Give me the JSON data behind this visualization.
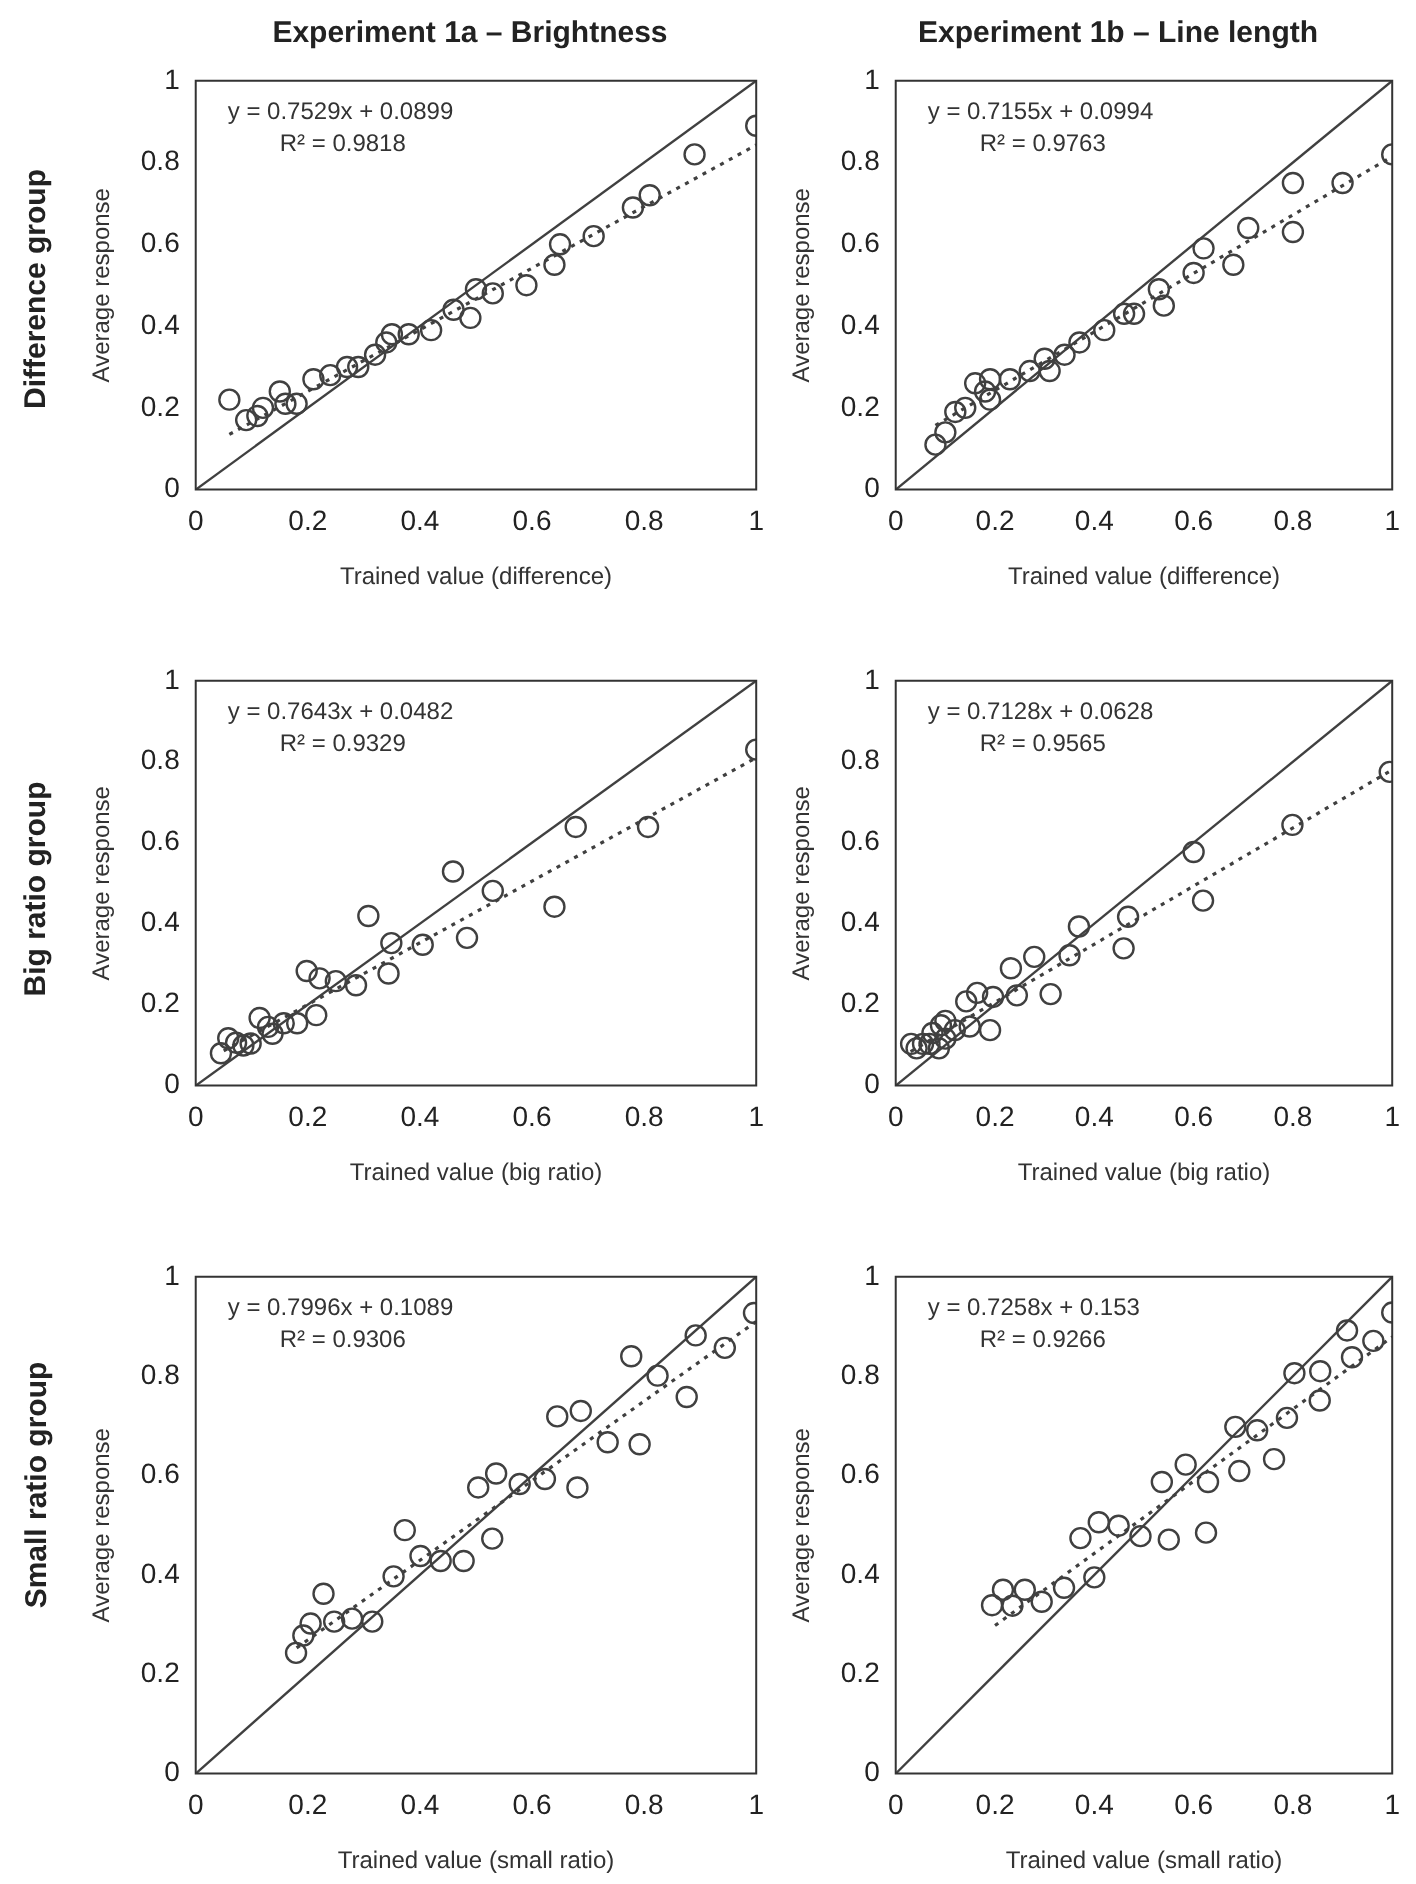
{
  "chart_data": [
    {
      "type": "scatter",
      "title": "Experiment 1a – Brightness",
      "xlabel": "Trained value (difference)",
      "ylabel": "Average response",
      "xlim": [
        0,
        1
      ],
      "ylim": [
        0,
        1
      ],
      "xticks": [
        0,
        0.2,
        0.4,
        0.6,
        0.8,
        1
      ],
      "yticks": [
        0,
        0.2,
        0.4,
        0.6,
        0.8,
        1
      ],
      "grid": false,
      "legend": false,
      "marker": "circle",
      "annotations": [
        "y = 0.7529x + 0.0899",
        "R² = 0.9818",
        "Difference group"
      ],
      "series": [
        {
          "type": "scatter",
          "color": "#404040",
          "x": [
            0.06,
            0.09,
            0.11,
            0.12,
            0.15,
            0.16,
            0.18,
            0.21,
            0.24,
            0.27,
            0.29,
            0.32,
            0.34,
            0.35,
            0.38,
            0.42,
            0.46,
            0.49,
            0.5,
            0.53,
            0.59,
            0.64,
            0.65,
            0.71,
            0.78,
            0.81,
            0.89,
            1
          ],
          "values": [
            0.22,
            0.17,
            0.18,
            0.2,
            0.24,
            0.21,
            0.21,
            0.27,
            0.28,
            0.3,
            0.3,
            0.33,
            0.36,
            0.38,
            0.38,
            0.39,
            0.44,
            0.42,
            0.49,
            0.48,
            0.5,
            0.55,
            0.6,
            0.62,
            0.69,
            0.72,
            0.82,
            0.89
          ]
        },
        {
          "type": "line",
          "color": "#404040",
          "line_style": "dotted",
          "marker": "none",
          "x": [
            0.06,
            1
          ],
          "values": [
            0.135,
            0.843
          ]
        },
        {
          "type": "line",
          "color": "#404040",
          "line_style": "solid",
          "marker": "none",
          "x": [
            0,
            1
          ],
          "values": [
            0,
            1
          ]
        }
      ]
    },
    {
      "type": "scatter",
      "title": "Experiment 1b – Line length",
      "xlabel": "Trained value (difference)",
      "ylabel": "Average response",
      "xlim": [
        0,
        1
      ],
      "ylim": [
        0,
        1
      ],
      "xticks": [
        0,
        0.2,
        0.4,
        0.6,
        0.8,
        1
      ],
      "yticks": [
        0,
        0.2,
        0.4,
        0.6,
        0.8,
        1
      ],
      "grid": false,
      "legend": false,
      "marker": "circle",
      "annotations": [
        "y = 0.7155x + 0.0994",
        "R² = 0.9763"
      ],
      "series": [
        {
          "type": "scatter",
          "color": "#404040",
          "x": [
            0.08,
            0.1,
            0.12,
            0.14,
            0.16,
            0.18,
            0.19,
            0.19,
            0.23,
            0.27,
            0.3,
            0.31,
            0.34,
            0.37,
            0.42,
            0.46,
            0.48,
            0.53,
            0.54,
            0.6,
            0.62,
            0.68,
            0.71,
            0.8,
            0.8,
            0.9,
            1
          ],
          "values": [
            0.11,
            0.14,
            0.19,
            0.2,
            0.26,
            0.24,
            0.27,
            0.22,
            0.27,
            0.29,
            0.32,
            0.29,
            0.33,
            0.36,
            0.39,
            0.43,
            0.43,
            0.49,
            0.45,
            0.53,
            0.59,
            0.55,
            0.64,
            0.75,
            0.63,
            0.75,
            0.82
          ]
        },
        {
          "type": "line",
          "color": "#404040",
          "line_style": "dotted",
          "marker": "none",
          "x": [
            0.08,
            1
          ],
          "values": [
            0.157,
            0.815
          ]
        },
        {
          "type": "line",
          "color": "#404040",
          "line_style": "solid",
          "marker": "none",
          "x": [
            0,
            1
          ],
          "values": [
            0,
            1
          ]
        }
      ]
    },
    {
      "type": "scatter",
      "xlabel": "Trained value (big ratio)",
      "ylabel": "Average response",
      "xlim": [
        0,
        1
      ],
      "ylim": [
        0,
        1
      ],
      "xticks": [
        0,
        0.2,
        0.4,
        0.6,
        0.8,
        1
      ],
      "yticks": [
        0,
        0.2,
        0.4,
        0.6,
        0.8,
        1
      ],
      "grid": false,
      "legend": false,
      "marker": "circle",
      "annotations": [
        "y = 0.7643x + 0.0482",
        "R² = 0.9329",
        "Big ratio group"
      ],
      "series": [
        {
          "type": "scatter",
          "color": "#404040",
          "x": [
            0.045,
            0.058,
            0.072,
            0.085,
            0.098,
            0.114,
            0.129,
            0.137,
            0.157,
            0.181,
            0.198,
            0.215,
            0.221,
            0.25,
            0.286,
            0.308,
            0.344,
            0.349,
            0.405,
            0.459,
            0.484,
            0.53,
            0.64,
            0.678,
            0.807,
            1
          ],
          "values": [
            0.08,
            0.117,
            0.106,
            0.099,
            0.104,
            0.167,
            0.145,
            0.128,
            0.154,
            0.154,
            0.283,
            0.174,
            0.265,
            0.258,
            0.248,
            0.419,
            0.277,
            0.352,
            0.348,
            0.529,
            0.365,
            0.481,
            0.442,
            0.639,
            0.639,
            0.83
          ]
        },
        {
          "type": "line",
          "color": "#404040",
          "line_style": "dotted",
          "marker": "none",
          "x": [
            0.05,
            1
          ],
          "values": [
            0.086,
            0.81
          ]
        },
        {
          "type": "line",
          "color": "#404040",
          "line_style": "solid",
          "marker": "none",
          "x": [
            0,
            1
          ],
          "values": [
            0,
            1
          ]
        }
      ]
    },
    {
      "type": "scatter",
      "xlabel": "Trained value (big ratio)",
      "ylabel": "Average response",
      "xlim": [
        0,
        1
      ],
      "ylim": [
        0,
        1
      ],
      "xticks": [
        0,
        0.2,
        0.4,
        0.6,
        0.8,
        1
      ],
      "yticks": [
        0,
        0.2,
        0.4,
        0.6,
        0.8,
        1
      ],
      "grid": false,
      "legend": false,
      "marker": "circle",
      "annotations": [
        "y = 0.7128x + 0.0628",
        "R² = 0.9565"
      ],
      "series": [
        {
          "type": "scatter",
          "color": "#404040",
          "x": [
            0.031,
            0.042,
            0.055,
            0.068,
            0.074,
            0.087,
            0.091,
            0.1,
            0.1,
            0.119,
            0.142,
            0.149,
            0.164,
            0.19,
            0.196,
            0.232,
            0.244,
            0.279,
            0.312,
            0.35,
            0.369,
            0.459,
            0.468,
            0.6,
            0.619,
            0.799,
            0.995
          ],
          "values": [
            0.103,
            0.092,
            0.103,
            0.103,
            0.13,
            0.092,
            0.149,
            0.16,
            0.116,
            0.137,
            0.208,
            0.146,
            0.229,
            0.137,
            0.219,
            0.29,
            0.223,
            0.318,
            0.226,
            0.322,
            0.393,
            0.339,
            0.417,
            0.577,
            0.457,
            0.644,
            0.775
          ]
        },
        {
          "type": "line",
          "color": "#404040",
          "line_style": "dotted",
          "marker": "none",
          "x": [
            0.03,
            1
          ],
          "values": [
            0.084,
            0.78
          ]
        },
        {
          "type": "line",
          "color": "#404040",
          "line_style": "solid",
          "marker": "none",
          "x": [
            0,
            1
          ],
          "values": [
            0,
            1
          ]
        }
      ]
    },
    {
      "type": "scatter",
      "xlabel": "Trained value (small ratio)",
      "ylabel": "Average response",
      "xlim": [
        0,
        1
      ],
      "ylim": [
        0,
        1
      ],
      "xticks": [
        0,
        0.2,
        0.4,
        0.6,
        0.8,
        1
      ],
      "yticks": [
        0,
        0.2,
        0.4,
        0.6,
        0.8,
        1
      ],
      "grid": false,
      "legend": false,
      "marker": "circle",
      "annotations": [
        "y = 0.7996x + 0.1089",
        "R² = 0.9306",
        "Small ratio group"
      ],
      "series": [
        {
          "type": "scatter",
          "color": "#404040",
          "x": [
            0.179,
            0.192,
            0.205,
            0.228,
            0.247,
            0.279,
            0.315,
            0.353,
            0.373,
            0.401,
            0.437,
            0.478,
            0.504,
            0.529,
            0.536,
            0.578,
            0.623,
            0.645,
            0.681,
            0.687,
            0.735,
            0.777,
            0.792,
            0.824,
            0.876,
            0.892,
            0.944,
            0.996
          ],
          "values": [
            0.243,
            0.278,
            0.302,
            0.362,
            0.306,
            0.312,
            0.306,
            0.397,
            0.49,
            0.438,
            0.428,
            0.428,
            0.576,
            0.473,
            0.604,
            0.583,
            0.593,
            0.719,
            0.576,
            0.73,
            0.667,
            0.84,
            0.663,
            0.801,
            0.758,
            0.882,
            0.857,
            0.927
          ]
        },
        {
          "type": "line",
          "color": "#404040",
          "line_style": "dotted",
          "marker": "none",
          "x": [
            0.18,
            1
          ],
          "values": [
            0.253,
            0.91
          ]
        },
        {
          "type": "line",
          "color": "#404040",
          "line_style": "solid",
          "marker": "none",
          "x": [
            0,
            1
          ],
          "values": [
            0,
            1
          ]
        }
      ]
    },
    {
      "type": "scatter",
      "xlabel": "Trained value (small ratio)",
      "ylabel": "Average response",
      "xlim": [
        0,
        1
      ],
      "ylim": [
        0,
        1
      ],
      "xticks": [
        0,
        0.2,
        0.4,
        0.6,
        0.8,
        1
      ],
      "yticks": [
        0,
        0.2,
        0.4,
        0.6,
        0.8,
        1
      ],
      "grid": false,
      "legend": false,
      "marker": "circle",
      "annotations": [
        "y = 0.7258x + 0.153",
        "R² = 0.9266"
      ],
      "series": [
        {
          "type": "scatter",
          "color": "#404040",
          "x": [
            0.194,
            0.216,
            0.235,
            0.26,
            0.294,
            0.339,
            0.372,
            0.4,
            0.409,
            0.449,
            0.493,
            0.536,
            0.55,
            0.584,
            0.625,
            0.629,
            0.684,
            0.692,
            0.728,
            0.762,
            0.788,
            0.803,
            0.854,
            0.855,
            0.909,
            0.919,
            0.962,
            1
          ],
          "values": [
            0.339,
            0.37,
            0.338,
            0.37,
            0.346,
            0.374,
            0.474,
            0.395,
            0.506,
            0.499,
            0.478,
            0.587,
            0.471,
            0.622,
            0.485,
            0.587,
            0.698,
            0.609,
            0.691,
            0.633,
            0.716,
            0.806,
            0.751,
            0.81,
            0.892,
            0.838,
            0.871,
            0.928
          ]
        },
        {
          "type": "line",
          "color": "#404040",
          "line_style": "dotted",
          "marker": "none",
          "x": [
            0.2,
            1
          ],
          "values": [
            0.298,
            0.879
          ]
        },
        {
          "type": "line",
          "color": "#404040",
          "line_style": "solid",
          "marker": "none",
          "x": [
            0,
            1
          ],
          "values": [
            0,
            1
          ]
        }
      ]
    }
  ]
}
